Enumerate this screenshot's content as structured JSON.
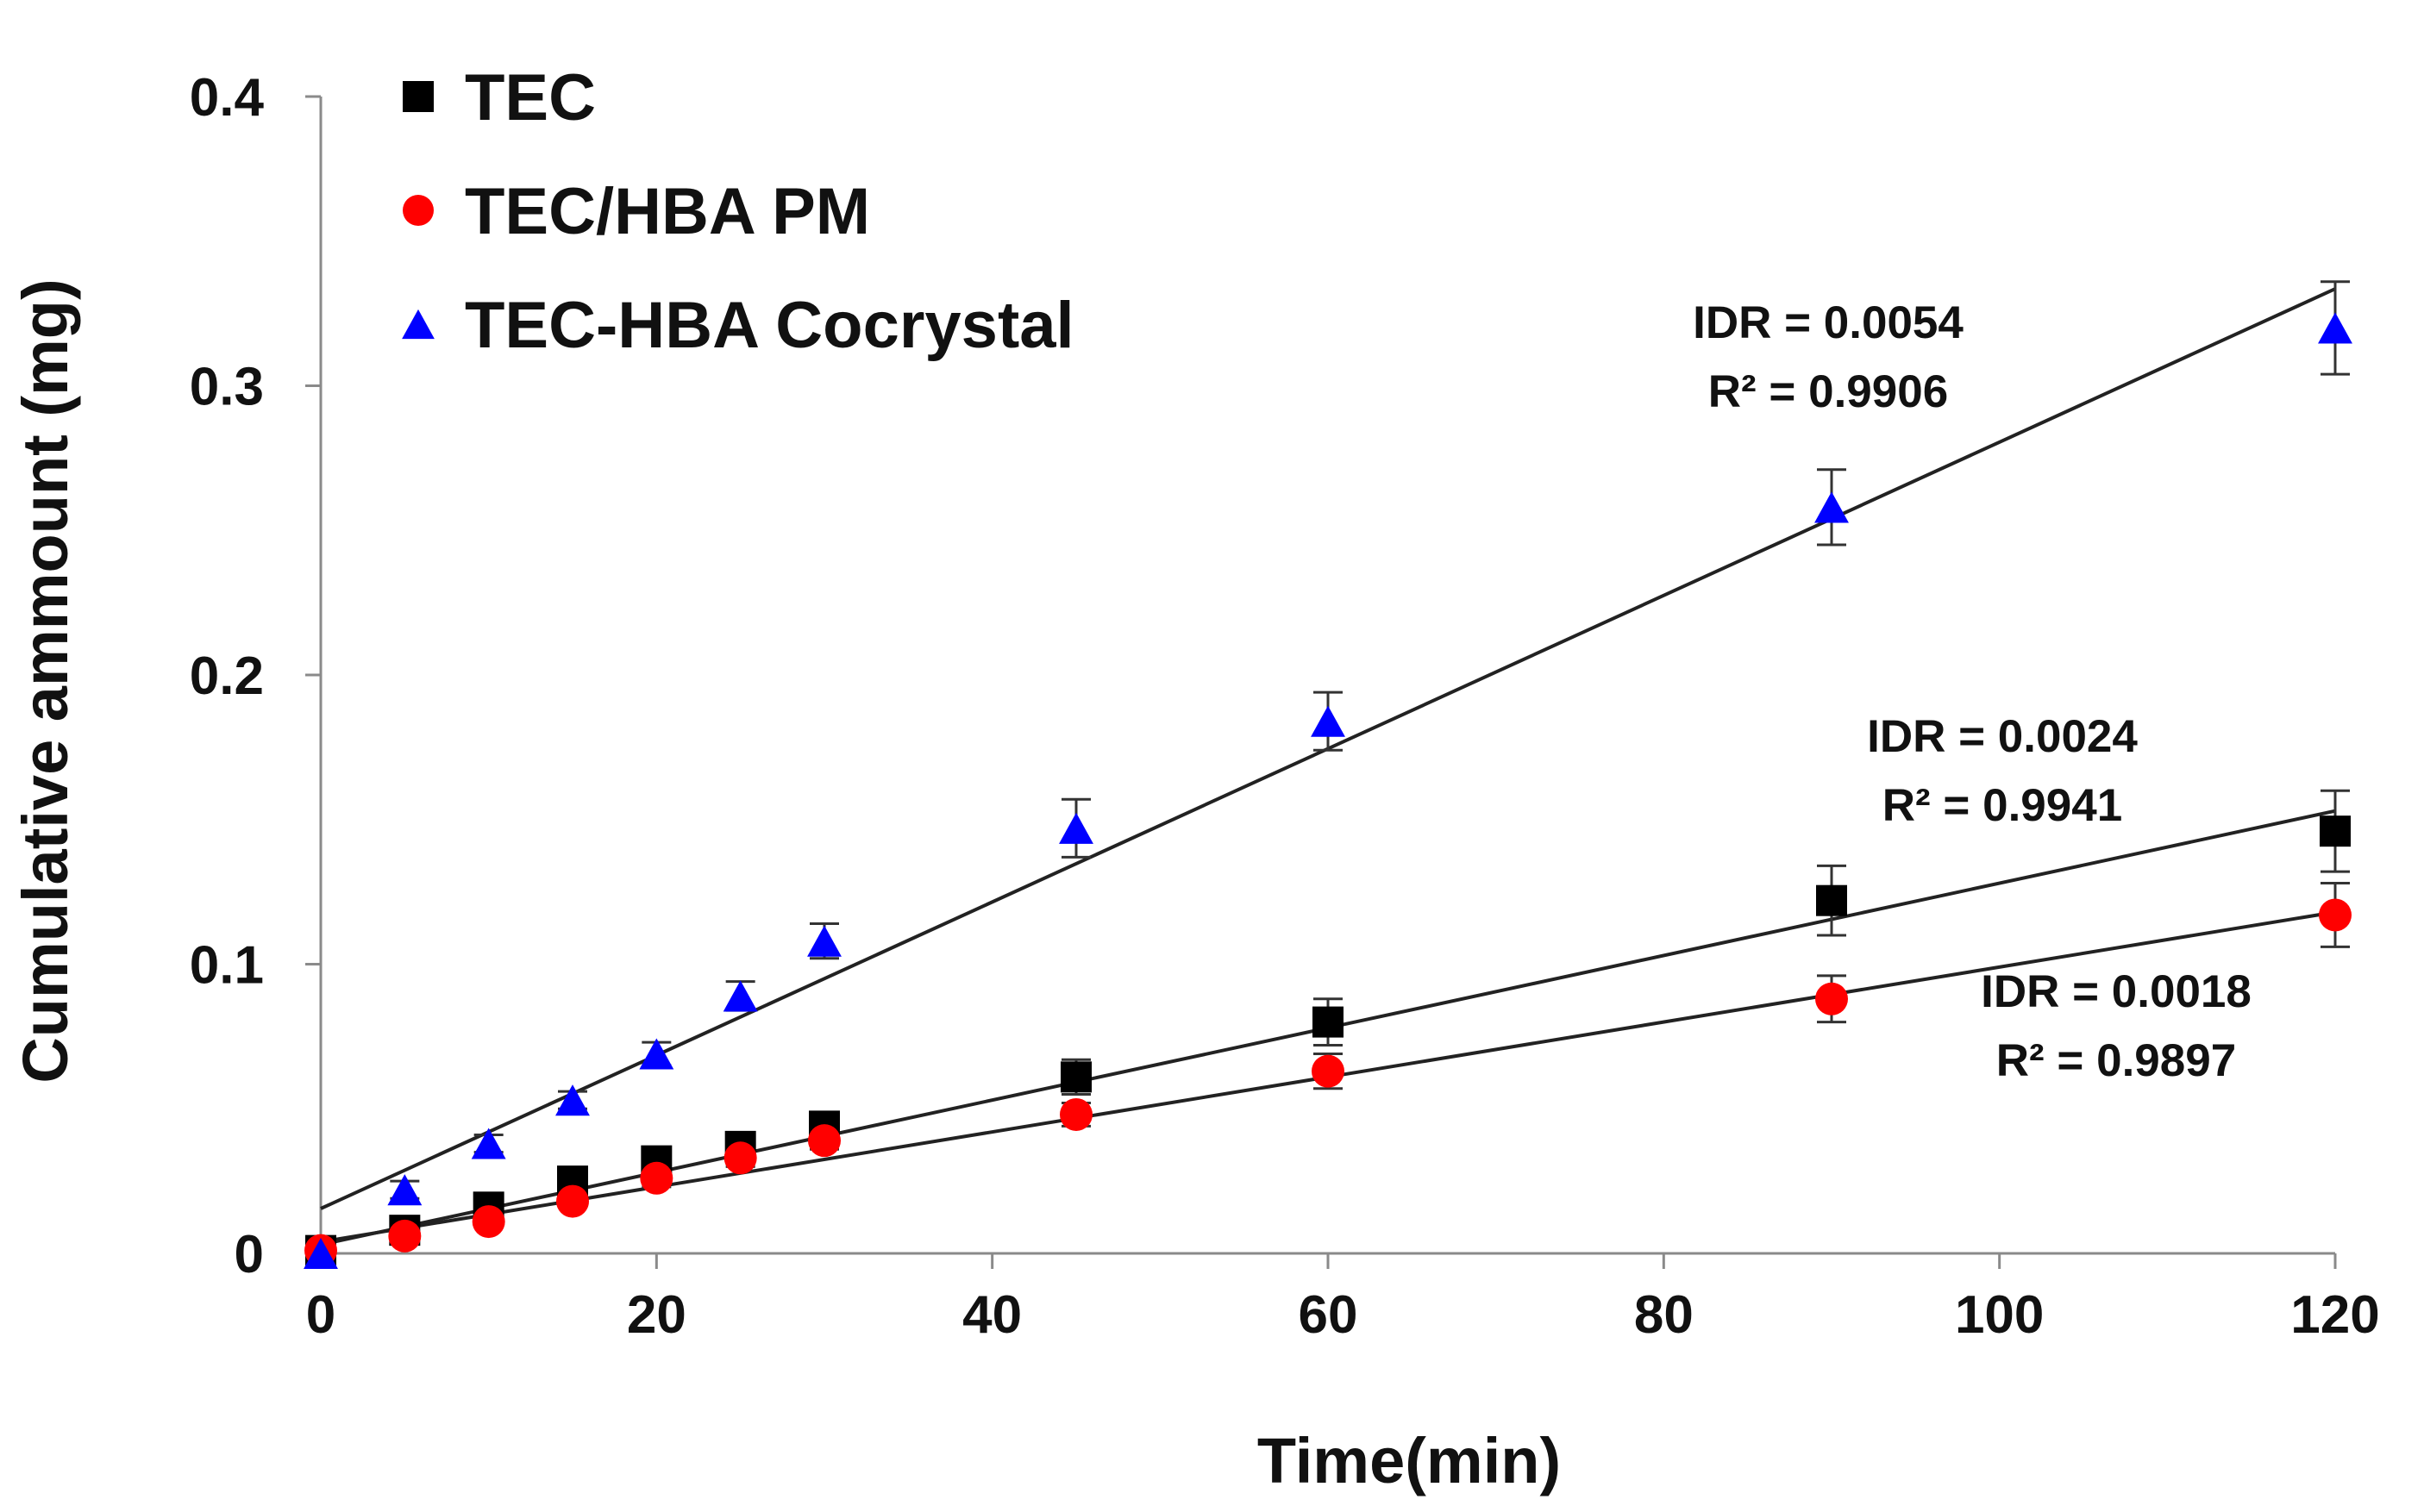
{
  "chart_data": {
    "type": "scatter",
    "title": "",
    "xlabel": "Time(min)",
    "ylabel": "Cumulative ammount (mg)",
    "xlim": [
      0,
      120
    ],
    "ylim": [
      0,
      0.4
    ],
    "xticks": [
      0,
      20,
      40,
      60,
      80,
      100,
      120
    ],
    "yticks": [
      0,
      0.1,
      0.2,
      0.3,
      0.4
    ],
    "xtick_labels": [
      "0",
      "20",
      "40",
      "60",
      "80",
      "100",
      "120"
    ],
    "ytick_labels": [
      "0",
      "0.1",
      "0.2",
      "0.3",
      "0.4"
    ],
    "grid": false,
    "legend_position": "top-left",
    "series": [
      {
        "name": "TEC",
        "marker": "square",
        "color": "#000000",
        "x": [
          0,
          5,
          10,
          15,
          20,
          25,
          30,
          45,
          60,
          90,
          120
        ],
        "y": [
          0.001,
          0.008,
          0.016,
          0.025,
          0.032,
          0.037,
          0.044,
          0.061,
          0.08,
          0.122,
          0.146
        ],
        "err": [
          0.001,
          0.002,
          0.003,
          0.003,
          0.003,
          0.004,
          0.004,
          0.006,
          0.008,
          0.012,
          0.014
        ],
        "fit": {
          "slope": 0.00125,
          "intercept": 0.003
        },
        "annotation": [
          "IDR = 0.0024",
          "R² = 0.9941"
        ]
      },
      {
        "name": "TEC/HBA PM",
        "marker": "circle",
        "color": "#ff0000",
        "x": [
          0,
          5,
          10,
          15,
          20,
          25,
          30,
          45,
          60,
          90,
          120
        ],
        "y": [
          0.001,
          0.006,
          0.011,
          0.018,
          0.026,
          0.033,
          0.039,
          0.048,
          0.063,
          0.088,
          0.117
        ],
        "err": [
          0.001,
          0.002,
          0.002,
          0.002,
          0.003,
          0.003,
          0.003,
          0.004,
          0.006,
          0.008,
          0.011
        ],
        "fit": {
          "slope": 0.00095,
          "intercept": 0.004
        },
        "annotation": [
          "IDR = 0.0018",
          "R² = 0.9897"
        ]
      },
      {
        "name": "TEC-HBA Cocrystal",
        "marker": "triangle",
        "color": "#0000ff",
        "x": [
          0,
          5,
          10,
          15,
          20,
          25,
          30,
          45,
          60,
          90,
          120
        ],
        "y": [
          0.0,
          0.022,
          0.038,
          0.053,
          0.069,
          0.089,
          0.108,
          0.147,
          0.184,
          0.258,
          0.32
        ],
        "err": [
          0.001,
          0.003,
          0.003,
          0.003,
          0.004,
          0.005,
          0.006,
          0.01,
          0.01,
          0.013,
          0.016
        ],
        "fit": {
          "slope": 0.00265,
          "intercept": 0.0155
        },
        "annotation": [
          "IDR = 0.0054",
          "R² = 0.9906"
        ]
      }
    ]
  }
}
